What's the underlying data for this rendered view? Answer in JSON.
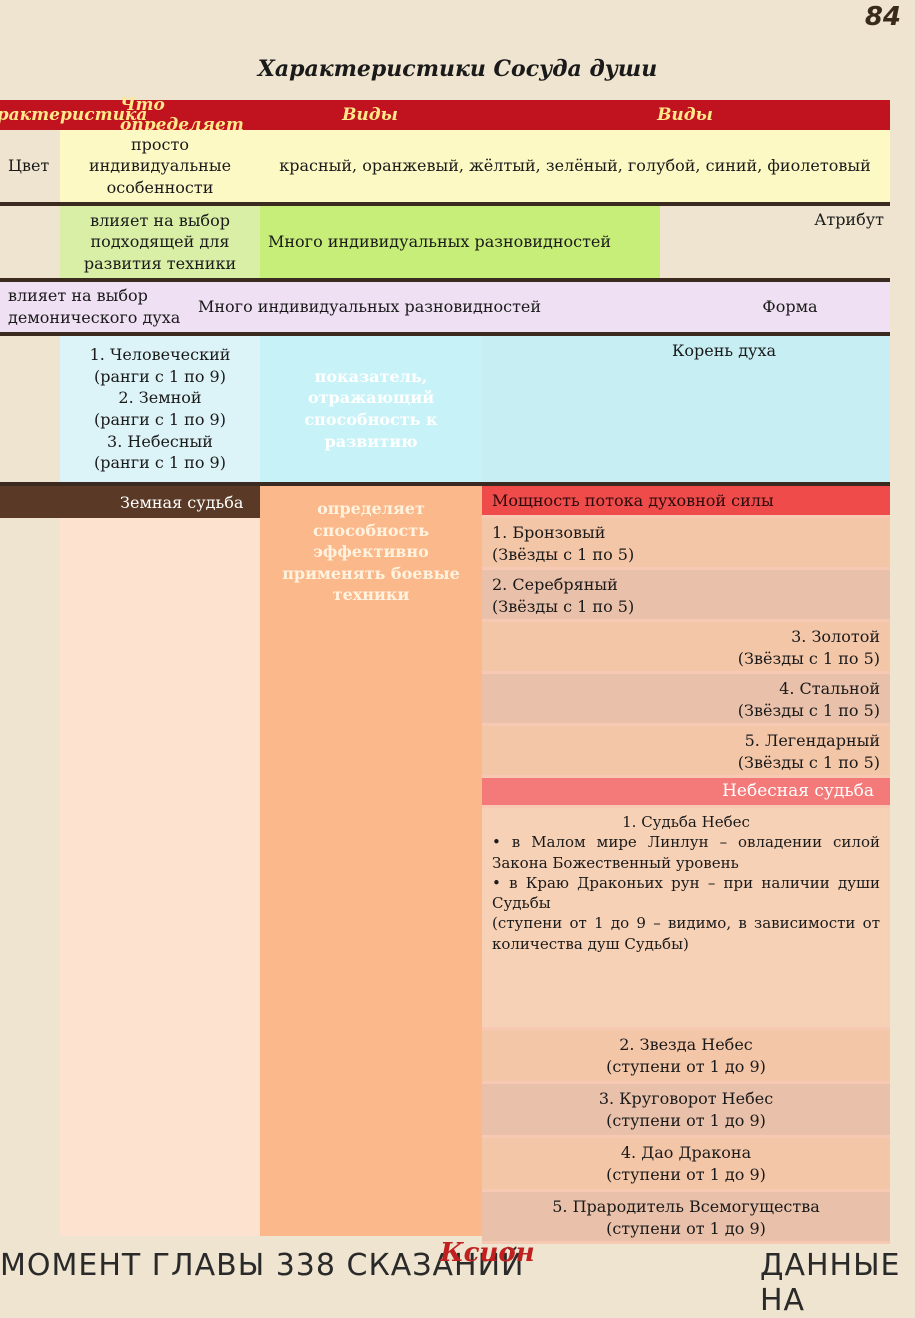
{
  "page_number": "84",
  "title": "Характеристики Сосуда души",
  "header": {
    "col0": "Характеристика",
    "col1": "Что определяет",
    "col2": "Виды",
    "col3": "Виды"
  },
  "rows": {
    "color": {
      "name": "Цвет",
      "determines": "просто индивидуальные особенности",
      "kinds": "красный, оранжевый, жёлтый, зелёный, голубой, синий, фиолетовый"
    },
    "attribute": {
      "name": "Атрибут",
      "determines": "влияет на выбор подходящей для развития техники",
      "kinds": "Много индивидуальных разновидностей"
    },
    "form": {
      "name": "Форма",
      "determines": "влияет на выбор демонического духа",
      "kinds": "Много индивидуальных разновидностей"
    },
    "root": {
      "name": "Корень духа",
      "determines": "показатель, отражающий способность к развитию",
      "kinds": [
        {
          "num": "1.",
          "label": "Человеческий",
          "range": "(ранги с 1 по 9)"
        },
        {
          "num": "2.",
          "label": "Земной",
          "range": "(ранги с 1 по 9)"
        },
        {
          "num": "3.",
          "label": "Небесный",
          "range": "(ранги с 1 по 9)"
        }
      ]
    }
  },
  "fate": {
    "name": "Мощность потока духовной силы",
    "determines": "определяет способность эффективно применять боевые техники",
    "earth_head": "Земная судьба",
    "earth_kinds": [
      {
        "num": "1.",
        "label": "Бронзовый",
        "range": "(Звёзды с 1 по 5)"
      },
      {
        "num": "2.",
        "label": "Серебряный",
        "range": "(Звёзды с 1 по 5)"
      },
      {
        "num": "3.",
        "label": "Золотой",
        "range": "(Звёзды с 1 по 5)"
      },
      {
        "num": "4.",
        "label": "Стальной",
        "range": "(Звёзды с 1 по 5)"
      },
      {
        "num": "5.",
        "label": "Легендарный",
        "range": "(Звёзды с 1 по 5)"
      }
    ],
    "celestial_head": "Небесная судьба",
    "celestial_first": {
      "num": "1.",
      "label": "Судьба Небес",
      "bullet1": "в Малом мире Линлун – овладении силой Закона Божественный уровень",
      "bullet2": "в Краю Драконьих рун – при наличии души Судьбы",
      "range": "(ступени от 1 до 9 – видимо, в зависимости от количества душ Судьбы)"
    },
    "celestial_kinds": [
      {
        "num": "2.",
        "label": "Звезда Небес",
        "range": "(ступени от 1 до 9)"
      },
      {
        "num": "3.",
        "label": "Круговорот Небес",
        "range": "(ступени от 1 до 9)"
      },
      {
        "num": "4.",
        "label": "Дао Дракона",
        "range": "(ступени от 1 до 9)"
      },
      {
        "num": "5.",
        "label": "Прародитель Всемогущества",
        "range": "(ступени от 1 до 9)"
      }
    ]
  },
  "footer": {
    "left": "МОМЕНТ ГЛАВЫ 338 СКАЗАНИЙ",
    "right": "ДАННЫЕ НА",
    "logo_text": "Ксион"
  },
  "colors": {
    "header_bg": "#c1121f",
    "header_text": "#ffe98a",
    "page_bg": "#efe4cf"
  }
}
